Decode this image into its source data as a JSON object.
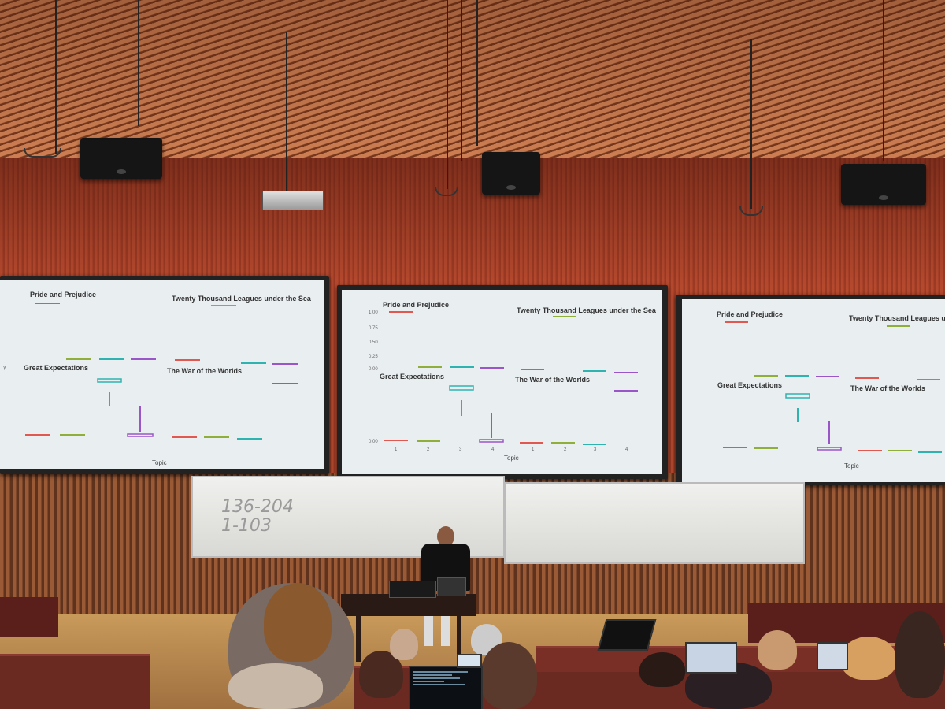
{
  "slide": {
    "top_left_title": "Pride and Prejudice",
    "top_right_title": "Twenty Thousand Leagues under the Sea",
    "bottom_left_title": "Great Expectations",
    "bottom_right_title": "The War of the Worlds",
    "x_axis_label": "Topic",
    "y_axis_label": "γ",
    "y_ticks": [
      "1.00",
      "0.75",
      "0.50",
      "0.25",
      "0.00"
    ],
    "x_ticks": [
      "1",
      "2",
      "3",
      "4"
    ]
  },
  "whiteboard": {
    "line1": "136-204",
    "line2": "1-103"
  },
  "colors": {
    "topic1": "#e0584f",
    "topic2": "#8fae3a",
    "topic3": "#2fb3b0",
    "topic4": "#9a56c8",
    "slide_bg": "#e9eef1",
    "wall": "#b5492e",
    "ceiling": "#d9885a"
  },
  "chart_data": {
    "type": "boxplot",
    "facets": [
      {
        "title": "Pride and Prejudice",
        "values": [
          1.0,
          0.0,
          0.0,
          0.0
        ]
      },
      {
        "title": "Twenty Thousand Leagues under the Sea",
        "values": [
          0.0,
          1.0,
          0.0,
          0.0
        ]
      },
      {
        "title": "Great Expectations",
        "values": [
          0.0,
          0.0,
          0.95,
          0.0
        ]
      },
      {
        "title": "The War of the Worlds",
        "values": [
          0.0,
          0.0,
          0.0,
          0.9
        ]
      }
    ],
    "categories": [
      "1",
      "2",
      "3",
      "4"
    ],
    "xlabel": "Topic",
    "ylabel": "γ",
    "ylim": [
      0,
      1
    ]
  }
}
